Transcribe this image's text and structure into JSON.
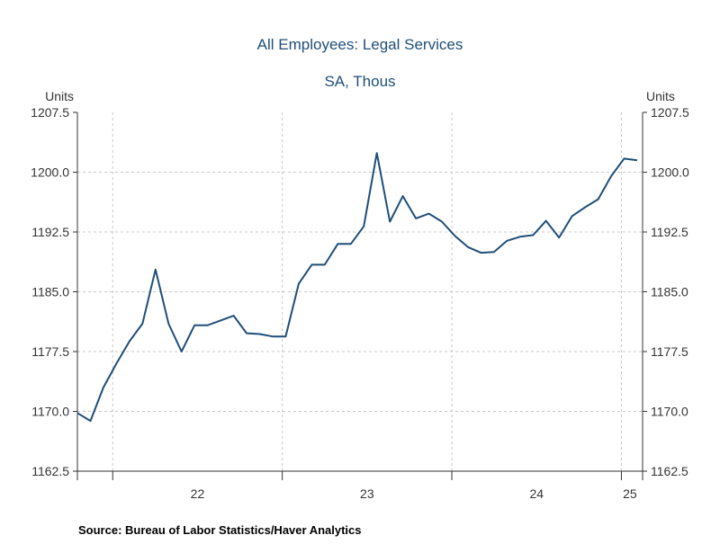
{
  "chart_data": {
    "type": "line",
    "title": "All Employees: Legal Services",
    "subtitle": "SA, Thous",
    "ylabel_left": "Units",
    "ylabel_right": "Units",
    "ylim": [
      1162.5,
      1207.5
    ],
    "yticks": [
      1162.5,
      1170.0,
      1177.5,
      1185.0,
      1192.5,
      1200.0,
      1207.5
    ],
    "ytick_labels": [
      "1162.5",
      "1170.0",
      "1177.5",
      "1185.0",
      "1192.5",
      "1200.0",
      "1207.5"
    ],
    "xlim": [
      "2021-10",
      "2025-02"
    ],
    "x_period_labels": [
      "22",
      "23",
      "24",
      "25"
    ],
    "grid": true,
    "line_color": "#1f4e79",
    "series": [
      {
        "x": [
          "2021-10",
          "2021-11",
          "2021-12",
          "2022-01",
          "2022-02",
          "2022-03",
          "2022-04",
          "2022-05",
          "2022-06",
          "2022-07",
          "2022-08",
          "2022-09",
          "2022-10",
          "2022-11",
          "2022-12",
          "2023-01",
          "2023-02",
          "2023-03",
          "2023-04",
          "2023-05",
          "2023-06",
          "2023-07",
          "2023-08",
          "2023-09",
          "2023-10",
          "2023-11",
          "2023-12",
          "2024-01",
          "2024-02",
          "2024-03",
          "2024-04",
          "2024-05",
          "2024-06",
          "2024-07",
          "2024-08",
          "2024-09",
          "2024-10",
          "2024-11",
          "2024-12",
          "2025-01",
          "2025-02"
        ],
        "values": [
          1169.8,
          1168.8,
          1173.0,
          1176.0,
          1178.8,
          1181.0,
          1187.8,
          1181.0,
          1177.5,
          1180.8,
          1180.8,
          1181.4,
          1182.0,
          1179.8,
          1179.7,
          1179.4,
          1179.4,
          1186.0,
          1188.4,
          1188.4,
          1191.0,
          1191.0,
          1193.2,
          1202.4,
          1193.8,
          1197.0,
          1194.2,
          1194.8,
          1193.8,
          1192.0,
          1190.6,
          1189.9,
          1190.0,
          1191.4,
          1191.9,
          1192.1,
          1193.9,
          1191.8,
          1194.5,
          1195.6,
          1196.6
        ]
      }
    ],
    "series_tail": [
      1199.5,
      1201.7,
      1201.5
    ],
    "source": "Source:  Bureau of Labor Statistics/Haver Analytics"
  }
}
